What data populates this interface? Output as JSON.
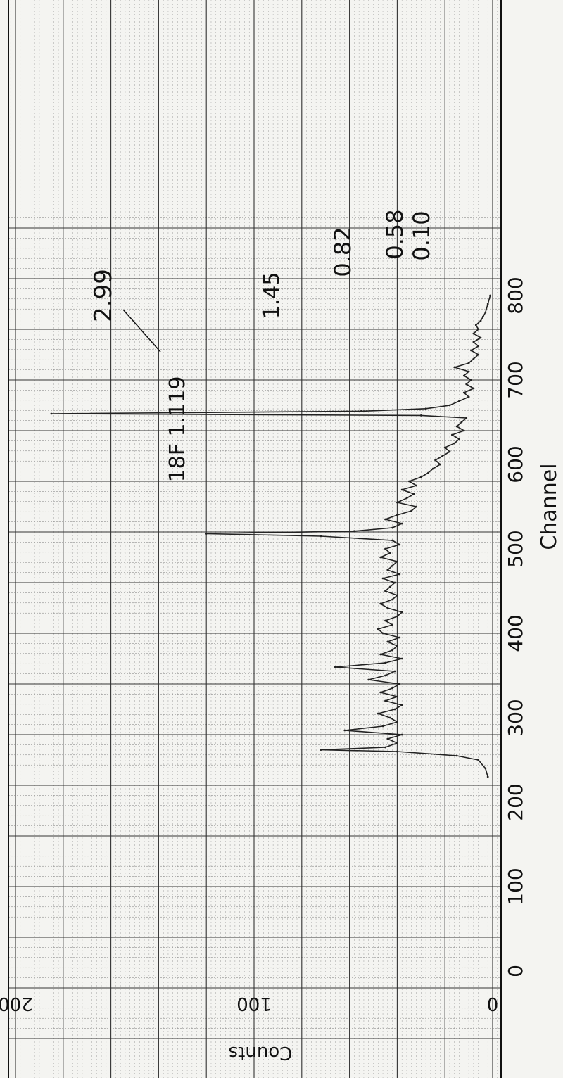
{
  "chart_data": {
    "type": "line",
    "orientation": "rotated 90 degrees clockwise (channel runs down the page, counts run right-to-left)",
    "xlabel": "Channel",
    "ylabel": "Counts",
    "xlim": [
      -80,
      900
    ],
    "ylim": [
      -40,
      200
    ],
    "x_ticks": [
      "0",
      "100",
      "200",
      "300",
      "400",
      "500",
      "600",
      "700",
      "800"
    ],
    "y_ticks": [
      "0",
      "100",
      "200"
    ],
    "grid": true,
    "series": [
      {
        "color": "#222222",
        "x": [
          230,
          240,
          250,
          255,
          260,
          262,
          265,
          270,
          275,
          280,
          285,
          290,
          295,
          300,
          305,
          310,
          315,
          320,
          325,
          330,
          335,
          340,
          345,
          350,
          355,
          360,
          365,
          370,
          375,
          380,
          385,
          390,
          395,
          400,
          405,
          410,
          415,
          420,
          425,
          430,
          435,
          440,
          445,
          450,
          455,
          460,
          465,
          470,
          475,
          480,
          485,
          490,
          495,
          500,
          505,
          510,
          515,
          518,
          521,
          525,
          530,
          535,
          540,
          545,
          550,
          555,
          560,
          565,
          570,
          575,
          580,
          585,
          590,
          595,
          600,
          605,
          610,
          615,
          620,
          625,
          630,
          635,
          640,
          645,
          650,
          655,
          658,
          660,
          663,
          666,
          670,
          675,
          680,
          685,
          690,
          695,
          700,
          705,
          710,
          715,
          720,
          725,
          730,
          735,
          740,
          745,
          750,
          755,
          760,
          765,
          770,
          775,
          780,
          790,
          800
        ],
        "y": [
          2,
          3,
          6,
          15,
          40,
          72,
          45,
          40,
          44,
          38,
          62,
          46,
          40,
          43,
          48,
          41,
          38,
          45,
          40,
          47,
          42,
          39,
          52,
          45,
          41,
          66,
          45,
          38,
          47,
          42,
          40,
          44,
          39,
          46,
          48,
          42,
          45,
          40,
          38,
          44,
          47,
          42,
          40,
          45,
          43,
          41,
          46,
          39,
          44,
          42,
          40,
          47,
          43,
          45,
          39,
          42,
          72,
          120,
          58,
          42,
          38,
          45,
          40,
          34,
          32,
          40,
          36,
          33,
          38,
          32,
          35,
          30,
          27,
          25,
          22,
          24,
          21,
          18,
          20,
          16,
          14,
          17,
          12,
          15,
          13,
          11,
          30,
          185,
          55,
          28,
          18,
          14,
          10,
          12,
          8,
          11,
          9,
          12,
          10,
          16,
          10,
          8,
          6,
          9,
          6,
          8,
          5,
          8,
          6,
          7,
          5,
          4,
          3,
          2,
          1
        ]
      }
    ],
    "annotations": [
      {
        "text": "2.99",
        "x": 658
      },
      {
        "text": "1.45",
        "x": 718
      },
      {
        "text": "0.82",
        "x": 740
      },
      {
        "text": "0.58",
        "x": 760
      },
      {
        "text": "0.10",
        "x": 780
      },
      {
        "text": "18F 1.119",
        "x": 521
      }
    ]
  }
}
